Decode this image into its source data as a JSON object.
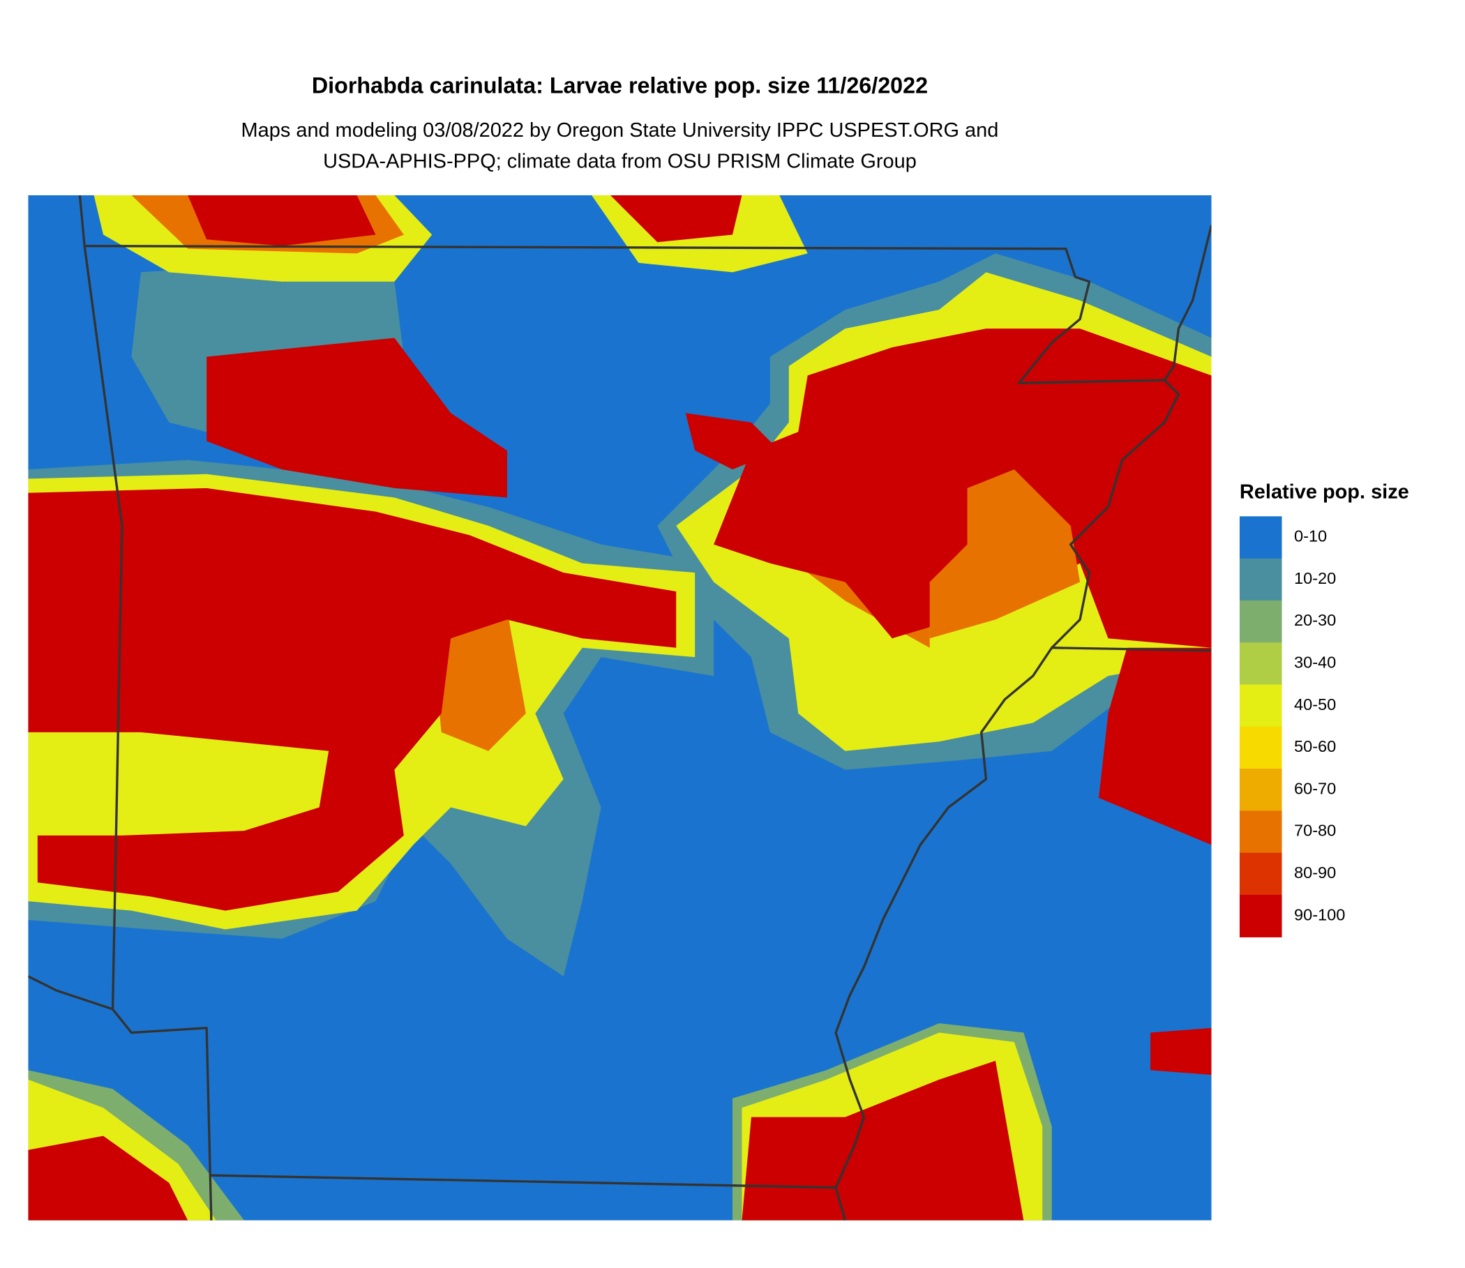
{
  "header": {
    "title": "Diorhabda carinulata: Larvae relative pop. size 11/26/2022",
    "subtitle": [
      "Maps and modeling 03/08/2022 by Oregon State University IPPC USPEST.ORG and",
      "USDA-APHIS-PPQ; climate data from OSU PRISM Climate Group"
    ]
  },
  "legend": {
    "title": "Relative pop. size",
    "items": [
      {
        "label": "0-10",
        "color": "#1a74cf"
      },
      {
        "label": "10-20",
        "color": "#4a8f9f"
      },
      {
        "label": "20-30",
        "color": "#7eae6e"
      },
      {
        "label": "30-40",
        "color": "#afcd45"
      },
      {
        "label": "40-50",
        "color": "#e5ee14"
      },
      {
        "label": "50-60",
        "color": "#f7da00"
      },
      {
        "label": "60-70",
        "color": "#eeab00"
      },
      {
        "label": "70-80",
        "color": "#e77200"
      },
      {
        "label": "80-90",
        "color": "#dc3300"
      },
      {
        "label": "90-100",
        "color": "#cc0000"
      }
    ]
  }
}
